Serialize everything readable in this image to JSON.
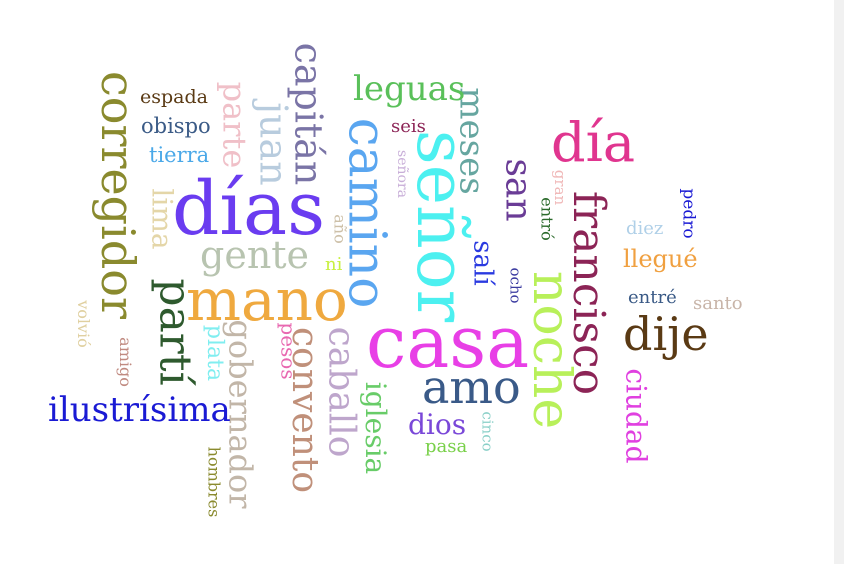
{
  "words": [
    {
      "id": "casa",
      "text": "casa",
      "color": "#e83fe6",
      "rotated": false
    },
    {
      "id": "dias",
      "text": "días",
      "color": "#6a3cf0",
      "rotated": false
    },
    {
      "id": "mano",
      "text": "mano",
      "color": "#efa93f",
      "rotated": false
    },
    {
      "id": "senor",
      "text": "señor",
      "color": "#4cf0f0",
      "rotated": true
    },
    {
      "id": "camino",
      "text": "camino",
      "color": "#5aa6f0",
      "rotated": true
    },
    {
      "id": "noche",
      "text": "noche",
      "color": "#b8f05a",
      "rotated": true
    },
    {
      "id": "francisco",
      "text": "francisco",
      "color": "#8c2456",
      "rotated": true
    },
    {
      "id": "dia",
      "text": "día",
      "color": "#e0358f",
      "rotated": false
    },
    {
      "id": "corregidor",
      "text": "corregidor",
      "color": "#8a8a2e",
      "rotated": true
    },
    {
      "id": "amo",
      "text": "amo",
      "color": "#3a5a88",
      "rotated": false
    },
    {
      "id": "dije",
      "text": "dije",
      "color": "#5a3a14",
      "rotated": false
    },
    {
      "id": "parti",
      "text": "partí",
      "color": "#2e5a2e",
      "rotated": true
    },
    {
      "id": "capitan",
      "text": "capitán",
      "color": "#7a74a6",
      "rotated": true
    },
    {
      "id": "convento",
      "text": "convento",
      "color": "#c0907a",
      "rotated": true
    },
    {
      "id": "caballo",
      "text": "caballo",
      "color": "#bea6cc",
      "rotated": true
    },
    {
      "id": "gobernador",
      "text": "gobernador",
      "color": "#c2b6a8",
      "rotated": true
    },
    {
      "id": "ilustrisima",
      "text": "ilustrísima",
      "color": "#1a1ad4",
      "rotated": false
    },
    {
      "id": "meses",
      "text": "meses",
      "color": "#66a6a0",
      "rotated": true
    },
    {
      "id": "san",
      "text": "san",
      "color": "#6a3c96",
      "rotated": true
    },
    {
      "id": "juan",
      "text": "juan",
      "color": "#b8ccde",
      "rotated": true
    },
    {
      "id": "leguas",
      "text": "leguas",
      "color": "#5ac05a",
      "rotated": false
    },
    {
      "id": "gente",
      "text": "gente",
      "color": "#b8c4b0",
      "rotated": false
    },
    {
      "id": "lima",
      "text": "lima",
      "color": "#e4d6a8",
      "rotated": true
    },
    {
      "id": "parte",
      "text": "parte",
      "color": "#f0c0c8",
      "rotated": true
    },
    {
      "id": "iglesia",
      "text": "iglesia",
      "color": "#68cc68",
      "rotated": true
    },
    {
      "id": "ciudad",
      "text": "ciudad",
      "color": "#e040e0",
      "rotated": true
    },
    {
      "id": "dios",
      "text": "dios",
      "color": "#7a48d8",
      "rotated": false
    },
    {
      "id": "sali",
      "text": "salí",
      "color": "#2a3ae0",
      "rotated": true
    },
    {
      "id": "llegue",
      "text": "llegué",
      "color": "#f0a040",
      "rotated": false
    },
    {
      "id": "plata",
      "text": "plata",
      "color": "#80eef0",
      "rotated": true
    },
    {
      "id": "pesos",
      "text": "pesos",
      "color": "#e868b0",
      "rotated": true
    },
    {
      "id": "obispo",
      "text": "obispo",
      "color": "#3a5a86",
      "rotated": false
    },
    {
      "id": "tierra",
      "text": "tierra",
      "color": "#4aa8e8",
      "rotated": false
    },
    {
      "id": "espada",
      "text": "espada",
      "color": "#5a3a14",
      "rotated": false
    },
    {
      "id": "seis",
      "text": "seis",
      "color": "#8c2456",
      "rotated": false
    },
    {
      "id": "diez",
      "text": "diez",
      "color": "#b0d0e8",
      "rotated": false
    },
    {
      "id": "entre",
      "text": "entré",
      "color": "#3a5a86",
      "rotated": false
    },
    {
      "id": "santo",
      "text": "santo",
      "color": "#c8b4a8",
      "rotated": false
    },
    {
      "id": "ni",
      "text": "ni",
      "color": "#c8f040",
      "rotated": false
    },
    {
      "id": "pasa",
      "text": "pasa",
      "color": "#78d048",
      "rotated": false
    },
    {
      "id": "ano",
      "text": "año",
      "color": "#cdc0a8",
      "rotated": true
    },
    {
      "id": "senora",
      "text": "señora",
      "color": "#c8aed8",
      "rotated": true
    },
    {
      "id": "gran",
      "text": "gran",
      "color": "#f0b8b8",
      "rotated": true
    },
    {
      "id": "entro",
      "text": "entró",
      "color": "#2a6a2a",
      "rotated": true
    },
    {
      "id": "pedro",
      "text": "pedro",
      "color": "#1a1ad4",
      "rotated": true
    },
    {
      "id": "ocho",
      "text": "ocho",
      "color": "#3a3aa0",
      "rotated": true
    },
    {
      "id": "cinco",
      "text": "cinco",
      "color": "#8ad0c8",
      "rotated": true
    },
    {
      "id": "volvio",
      "text": "volvió",
      "color": "#e0d0a0",
      "rotated": true
    },
    {
      "id": "amigo",
      "text": "amigo",
      "color": "#c08a80",
      "rotated": true
    },
    {
      "id": "hombres",
      "text": "hombres",
      "color": "#8a8a2e",
      "rotated": true
    }
  ]
}
